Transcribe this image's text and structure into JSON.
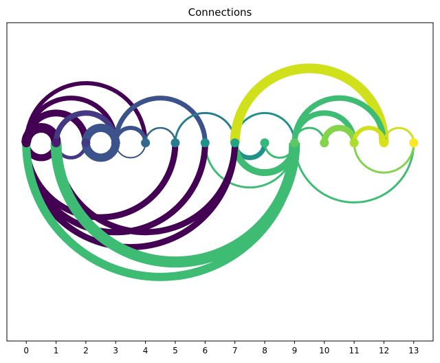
{
  "chart_data": {
    "type": "arc",
    "title": "Connections",
    "xlabel": "",
    "ylabel": "",
    "x_ticks": [
      0,
      1,
      2,
      3,
      4,
      5,
      6,
      7,
      8,
      9,
      10,
      11,
      12,
      13
    ],
    "xlim": [
      -0.65,
      13.65
    ],
    "ylim": [
      -6.6,
      4.0
    ],
    "grid": false,
    "legend": "none",
    "nodes": [
      {
        "id": 0,
        "color": "#440154"
      },
      {
        "id": 1,
        "color": "#481f70"
      },
      {
        "id": 2,
        "color": "#443983"
      },
      {
        "id": 3,
        "color": "#3b528b"
      },
      {
        "id": 4,
        "color": "#31688e"
      },
      {
        "id": 5,
        "color": "#287c8e"
      },
      {
        "id": 6,
        "color": "#21918c"
      },
      {
        "id": 7,
        "color": "#20a486"
      },
      {
        "id": 8,
        "color": "#35b779"
      },
      {
        "id": 9,
        "color": "#5ec962"
      },
      {
        "id": 10,
        "color": "#84d44b"
      },
      {
        "id": 11,
        "color": "#addc30"
      },
      {
        "id": 12,
        "color": "#d8e219"
      },
      {
        "id": 13,
        "color": "#fde725"
      }
    ],
    "arcs": [
      {
        "from": 0,
        "to": 1,
        "side": "above",
        "color": "#440154",
        "weight": 14
      },
      {
        "from": 0,
        "to": 2,
        "side": "above",
        "color": "#440154",
        "weight": 10
      },
      {
        "from": 0,
        "to": 3,
        "side": "above",
        "color": "#440154",
        "weight": 7
      },
      {
        "from": 0,
        "to": 4,
        "side": "above",
        "color": "#440154",
        "weight": 6
      },
      {
        "from": 1,
        "to": 3,
        "side": "above",
        "color": "#443983",
        "weight": 8
      },
      {
        "from": 2,
        "to": 3,
        "side": "above",
        "color": "#3b528b",
        "weight": 12
      },
      {
        "from": 3,
        "to": 4,
        "side": "above",
        "color": "#3b528b",
        "weight": 6
      },
      {
        "from": 3,
        "to": 6,
        "side": "above",
        "color": "#3b528b",
        "weight": 7
      },
      {
        "from": 4,
        "to": 5,
        "side": "above",
        "color": "#31688e",
        "weight": 2.5
      },
      {
        "from": 5,
        "to": 7,
        "side": "above",
        "color": "#287c8e",
        "weight": 3
      },
      {
        "from": 7,
        "to": 9,
        "side": "above",
        "color": "#21918c",
        "weight": 3
      },
      {
        "from": 7,
        "to": 12,
        "side": "above",
        "color": "#d0e11c",
        "weight": 14
      },
      {
        "from": 9,
        "to": 10,
        "side": "above",
        "color": "#3ebc73",
        "weight": 3
      },
      {
        "from": 9,
        "to": 11,
        "side": "above",
        "color": "#3ebc73",
        "weight": 8
      },
      {
        "from": 9,
        "to": 12,
        "side": "above",
        "color": "#3ebc73",
        "weight": 8
      },
      {
        "from": 10,
        "to": 11,
        "side": "above",
        "color": "#84d44b",
        "weight": 9
      },
      {
        "from": 11,
        "to": 12,
        "side": "above",
        "color": "#d0e11c",
        "weight": 6
      },
      {
        "from": 12,
        "to": 13,
        "side": "above",
        "color": "#d0e11c",
        "weight": 3
      },
      {
        "from": 0,
        "to": 1,
        "side": "below",
        "color": "#440154",
        "weight": 10
      },
      {
        "from": 1,
        "to": 2,
        "side": "below",
        "color": "#443983",
        "weight": 5
      },
      {
        "from": 2,
        "to": 3,
        "side": "below",
        "color": "#3b528b",
        "weight": 12
      },
      {
        "from": 3,
        "to": 4,
        "side": "below",
        "color": "#3b528b",
        "weight": 2
      },
      {
        "from": 7,
        "to": 8,
        "side": "below",
        "color": "#21918c",
        "weight": 7
      },
      {
        "from": 8,
        "to": 9,
        "side": "below",
        "color": "#3ebc73",
        "weight": 3
      },
      {
        "from": 7,
        "to": 9,
        "side": "below",
        "color": "#3ebc73",
        "weight": 10
      },
      {
        "from": 6,
        "to": 9,
        "side": "below",
        "color": "#3ebc73",
        "weight": 3
      },
      {
        "from": 0,
        "to": 5,
        "side": "below",
        "color": "#440154",
        "weight": 9
      },
      {
        "from": 0,
        "to": 6,
        "side": "below",
        "color": "#440154",
        "weight": 9
      },
      {
        "from": 0,
        "to": 7,
        "side": "below",
        "color": "#440154",
        "weight": 9
      },
      {
        "from": 1,
        "to": 7,
        "side": "below",
        "color": "#440154",
        "weight": 9
      },
      {
        "from": 1,
        "to": 9,
        "side": "below",
        "color": "#3ebc73",
        "weight": 16
      },
      {
        "from": 0,
        "to": 9,
        "side": "below",
        "color": "#3ebc73",
        "weight": 12
      },
      {
        "from": 9,
        "to": 13,
        "side": "below",
        "color": "#3ebc73",
        "weight": 3
      },
      {
        "from": 11,
        "to": 13,
        "side": "below",
        "color": "#84d44b",
        "weight": 3
      }
    ]
  }
}
